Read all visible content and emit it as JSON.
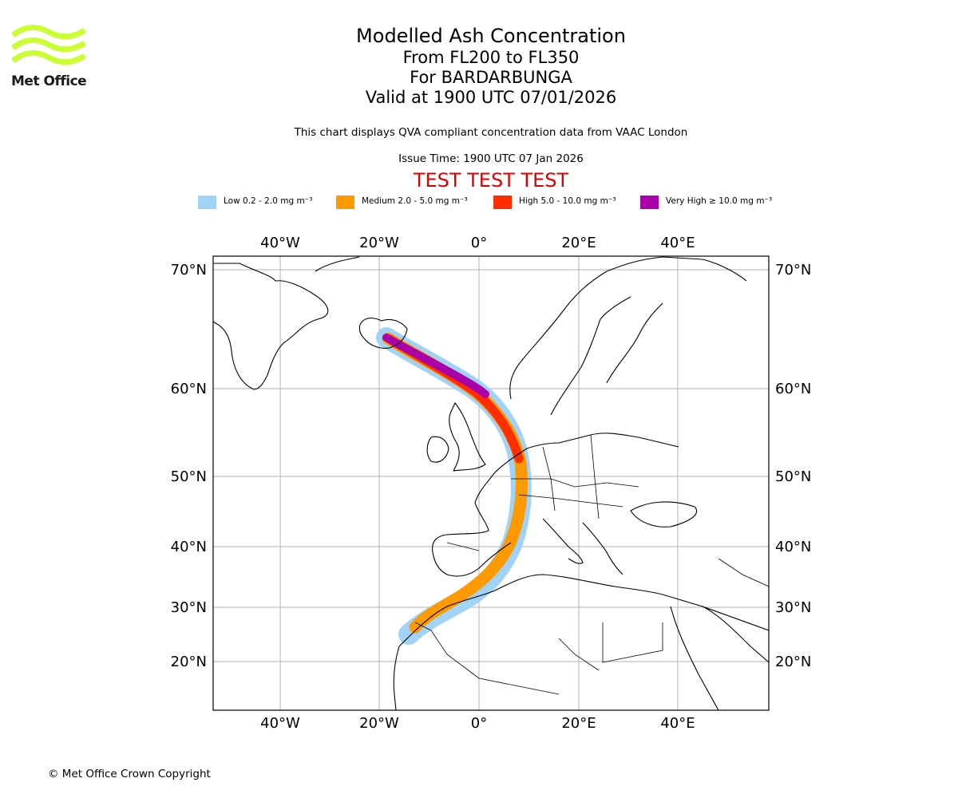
{
  "logo": {
    "text": "Met Office",
    "color": "#ccff33"
  },
  "title": {
    "main": "Modelled Ash Concentration",
    "levels": "From FL200 to FL350",
    "volcano": "For BARDARBUNGA",
    "valid": "Valid at 1900 UTC 07/01/2026"
  },
  "subtitle": "This chart displays QVA compliant concentration data from VAAC London",
  "issue_time": "Issue Time: 1900 UTC 07 Jan 2026",
  "test_banner": "TEST TEST TEST",
  "legend": [
    {
      "label": "Low 0.2 - 2.0 mg m⁻³",
      "color": "#a1d2f7"
    },
    {
      "label": "Medium 2.0 - 5.0 mg m⁻³",
      "color": "#ff9900"
    },
    {
      "label": "High 5.0 - 10.0 mg m⁻³",
      "color": "#ff2d00"
    },
    {
      "label": "Very High ≥ 10.0 mg m⁻³",
      "color": "#aa00aa"
    }
  ],
  "map": {
    "lon_ticks": [
      "40°W",
      "20°W",
      "0°",
      "20°E",
      "40°E"
    ],
    "lat_ticks": [
      "70°N",
      "60°N",
      "50°N",
      "40°N",
      "30°N",
      "20°N"
    ],
    "gridline_color": "#b0b0b0"
  },
  "copyright": "© Met Office Crown Copyright"
}
